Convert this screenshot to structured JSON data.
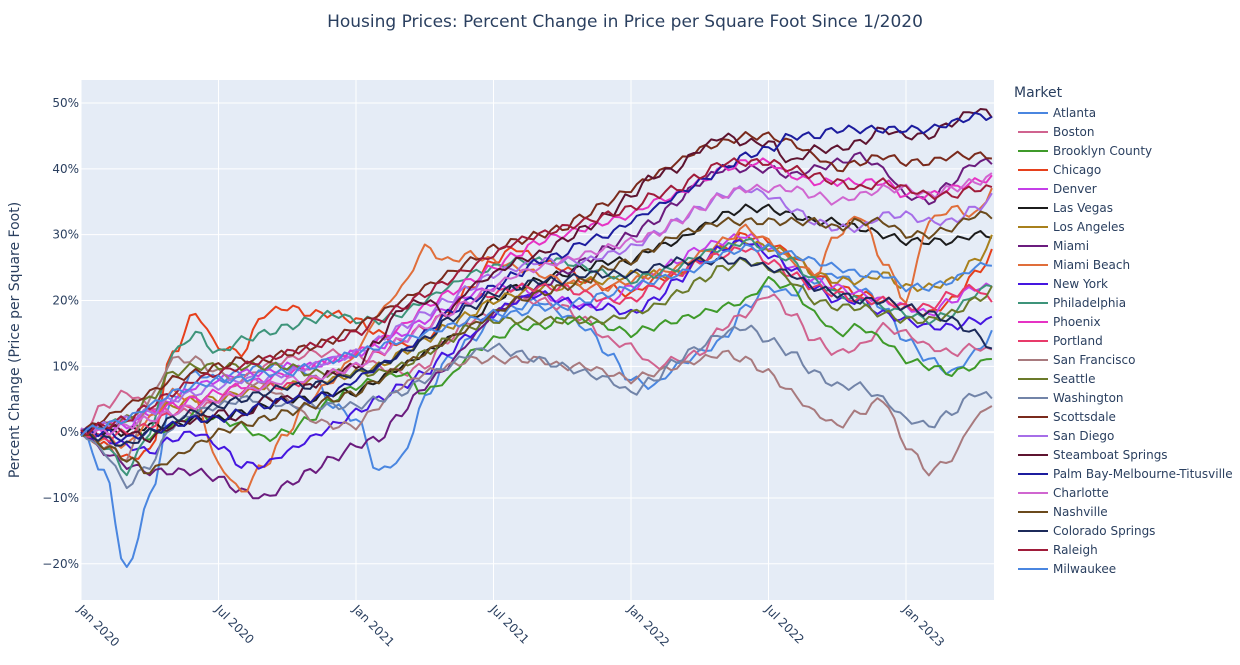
{
  "chart_data": {
    "type": "line",
    "title": "Housing Prices: Percent Change in Price per Square Foot Since 1/2020",
    "xlabel": "",
    "ylabel": "Percent Change (Price per Square Foot)",
    "legend_title": "Market",
    "legend_position": "right",
    "grid": true,
    "ylim": [
      -25.5,
      53.5
    ],
    "xlim": [
      "2020-01",
      "2023-05"
    ],
    "x_ticks": [
      "Jan 2020",
      "Jul 2020",
      "Jan 2021",
      "Jul 2021",
      "Jan 2022",
      "Jul 2022",
      "Jan 2023"
    ],
    "y_ticks": [
      50,
      40,
      30,
      20,
      10,
      0,
      -10,
      -20
    ],
    "y_tick_labels": [
      "50%",
      "40%",
      "30%",
      "20%",
      "10%",
      "0%",
      "−10%",
      "−20%"
    ],
    "x": [
      "2020-01",
      "2020-02",
      "2020-03",
      "2020-04",
      "2020-05",
      "2020-06",
      "2020-07",
      "2020-08",
      "2020-09",
      "2020-10",
      "2020-11",
      "2020-12",
      "2021-01",
      "2021-02",
      "2021-03",
      "2021-04",
      "2021-05",
      "2021-06",
      "2021-07",
      "2021-08",
      "2021-09",
      "2021-10",
      "2021-11",
      "2021-12",
      "2022-01",
      "2022-02",
      "2022-03",
      "2022-04",
      "2022-05",
      "2022-06",
      "2022-07",
      "2022-08",
      "2022-09",
      "2022-10",
      "2022-11",
      "2022-12",
      "2023-01",
      "2023-02",
      "2023-03",
      "2023-04",
      "2023-05"
    ],
    "series": [
      {
        "name": "Atlanta",
        "color": "#4a86e0",
        "values": [
          0,
          -6,
          -21,
          -10,
          5,
          9,
          8,
          9,
          10,
          10,
          9,
          4,
          2,
          -6,
          -4,
          5,
          11,
          14,
          17,
          19,
          20,
          18,
          16,
          12,
          8,
          7,
          10,
          12,
          14,
          19,
          22,
          21,
          23,
          24,
          22,
          19,
          14,
          11,
          9,
          12,
          16
        ]
      },
      {
        "name": "Boston",
        "color": "#d0638f",
        "values": [
          0,
          4,
          6,
          4,
          3,
          3,
          5,
          8,
          10,
          11,
          12,
          12,
          12,
          10,
          9,
          10,
          14,
          17,
          18,
          20,
          20,
          19,
          17,
          14,
          13,
          10,
          11,
          12,
          16,
          18,
          21,
          18,
          14,
          12,
          13,
          16,
          15,
          13,
          12,
          13,
          12
        ]
      },
      {
        "name": "Brooklyn County",
        "color": "#3f9a2a",
        "values": [
          0,
          1,
          2,
          -1,
          1,
          3,
          2,
          1,
          -1,
          0,
          2,
          5,
          7,
          8,
          9,
          6,
          8,
          12,
          14,
          16,
          16,
          17,
          17,
          16,
          15,
          16,
          17,
          18,
          19,
          20,
          23,
          22,
          18,
          15,
          16,
          14,
          11,
          10,
          9,
          10,
          12
        ]
      },
      {
        "name": "Chicago",
        "color": "#e6401c",
        "values": [
          0,
          -2,
          -4,
          -3,
          12,
          18,
          13,
          12,
          18,
          19,
          18,
          18,
          17,
          15,
          13,
          14,
          18,
          22,
          26,
          28,
          26,
          25,
          23,
          22,
          21,
          23,
          24,
          26,
          28,
          30,
          29,
          27,
          24,
          22,
          21,
          20,
          19,
          18,
          20,
          24,
          28
        ]
      },
      {
        "name": "Denver",
        "color": "#c43fe8",
        "values": [
          0,
          0,
          1,
          3,
          5,
          7,
          8,
          9,
          9,
          10,
          10,
          11,
          12,
          13,
          15,
          17,
          19,
          21,
          22,
          22,
          21,
          20,
          19,
          20,
          22,
          24,
          26,
          28,
          29,
          30,
          28,
          25,
          23,
          22,
          21,
          20,
          19,
          18,
          20,
          22,
          22
        ]
      },
      {
        "name": "Las Vegas",
        "color": "#1c1c1c",
        "values": [
          0,
          0,
          0,
          1,
          1,
          2,
          2,
          3,
          4,
          5,
          5,
          6,
          6,
          8,
          10,
          12,
          14,
          17,
          20,
          22,
          23,
          24,
          25,
          26,
          26,
          28,
          29,
          31,
          33,
          34,
          34,
          33,
          32,
          32,
          31,
          30,
          29,
          29,
          29,
          30,
          30
        ]
      },
      {
        "name": "Los Angeles",
        "color": "#a8801c",
        "values": [
          0,
          1,
          2,
          3,
          4,
          5,
          5,
          6,
          7,
          7,
          8,
          8,
          9,
          10,
          12,
          14,
          16,
          18,
          20,
          21,
          22,
          22,
          23,
          23,
          24,
          24,
          24,
          26,
          28,
          29,
          28,
          27,
          24,
          23,
          23,
          24,
          22,
          22,
          23,
          26,
          30
        ]
      },
      {
        "name": "Miami",
        "color": "#6b1c7e",
        "values": [
          0,
          -3,
          -5,
          -6,
          -6,
          -6,
          -7,
          -9,
          -10,
          -8,
          -6,
          -4,
          -2,
          -1,
          3,
          7,
          10,
          14,
          18,
          20,
          22,
          24,
          26,
          28,
          30,
          32,
          35,
          38,
          40,
          40,
          40,
          39,
          40,
          41,
          42,
          40,
          36,
          35,
          38,
          41,
          41
        ]
      },
      {
        "name": "Miami Beach",
        "color": "#e06e3a",
        "values": [
          0,
          -1,
          -2,
          2,
          6,
          5,
          -5,
          -9,
          -5,
          0,
          5,
          8,
          12,
          18,
          22,
          28,
          26,
          27,
          26,
          25,
          24,
          23,
          22,
          22,
          23,
          24,
          25,
          27,
          29,
          31,
          29,
          26,
          24,
          30,
          33,
          26,
          20,
          32,
          34,
          33,
          38
        ]
      },
      {
        "name": "New York",
        "color": "#4516e0",
        "values": [
          0,
          -1,
          -2,
          -3,
          -1,
          0,
          -2,
          -5,
          -5,
          -3,
          -1,
          1,
          3,
          5,
          7,
          9,
          12,
          15,
          18,
          20,
          21,
          20,
          19,
          19,
          18,
          20,
          23,
          26,
          28,
          29,
          27,
          25,
          22,
          20,
          20,
          18,
          17,
          16,
          16,
          17,
          17
        ]
      },
      {
        "name": "Philadelphia",
        "color": "#3d947a",
        "values": [
          0,
          -2,
          -6,
          0,
          12,
          15,
          12,
          14,
          15,
          16,
          17,
          18,
          17,
          17,
          18,
          20,
          22,
          24,
          25,
          26,
          26,
          26,
          25,
          24,
          23,
          24,
          25,
          27,
          28,
          29,
          28,
          26,
          23,
          21,
          20,
          19,
          18,
          17,
          18,
          21,
          23
        ]
      },
      {
        "name": "Phoenix",
        "color": "#e633c4",
        "values": [
          0,
          1,
          2,
          3,
          4,
          5,
          6,
          7,
          8,
          9,
          10,
          11,
          12,
          14,
          16,
          19,
          21,
          23,
          25,
          27,
          29,
          30,
          31,
          32,
          33,
          35,
          36,
          38,
          40,
          41,
          41,
          39,
          38,
          38,
          38,
          38,
          36,
          36,
          37,
          38,
          39
        ]
      },
      {
        "name": "Portland",
        "color": "#e83a6a",
        "values": [
          0,
          -1,
          0,
          1,
          3,
          4,
          5,
          6,
          7,
          7,
          8,
          9,
          10,
          12,
          14,
          16,
          18,
          20,
          21,
          22,
          22,
          22,
          21,
          20,
          20,
          22,
          24,
          26,
          27,
          28,
          26,
          24,
          22,
          21,
          20,
          20,
          19,
          19,
          21,
          22,
          19
        ]
      },
      {
        "name": "San Francisco",
        "color": "#a87a7e",
        "values": [
          0,
          -2,
          -4,
          5,
          11,
          11,
          9,
          8,
          7,
          5,
          2,
          1,
          1,
          4,
          7,
          9,
          10,
          11,
          11,
          11,
          11,
          10,
          10,
          9,
          8,
          9,
          10,
          11,
          12,
          11,
          9,
          6,
          3,
          1,
          3,
          5,
          -2,
          -6,
          -4,
          2,
          5
        ]
      },
      {
        "name": "Seattle",
        "color": "#6b7a2a",
        "values": [
          0,
          1,
          2,
          5,
          9,
          10,
          10,
          10,
          10,
          10,
          9,
          9,
          9,
          9,
          10,
          12,
          14,
          16,
          17,
          17,
          17,
          17,
          17,
          17,
          18,
          19,
          21,
          23,
          25,
          26,
          25,
          23,
          20,
          19,
          19,
          18,
          17,
          17,
          18,
          20,
          22
        ]
      },
      {
        "name": "Washington",
        "color": "#7284a8",
        "values": [
          0,
          -3,
          -8,
          -5,
          1,
          3,
          4,
          5,
          5,
          4,
          4,
          4,
          4,
          5,
          6,
          8,
          10,
          12,
          13,
          12,
          11,
          10,
          9,
          8,
          6,
          8,
          11,
          13,
          15,
          16,
          14,
          12,
          9,
          7,
          7,
          5,
          2,
          1,
          3,
          6,
          5
        ]
      },
      {
        "name": "Scottsdale",
        "color": "#7a2a1c",
        "values": [
          0,
          2,
          4,
          6,
          8,
          9,
          10,
          11,
          11,
          12,
          13,
          14,
          16,
          18,
          20,
          22,
          24,
          26,
          28,
          29,
          30,
          31,
          33,
          35,
          37,
          39,
          41,
          43,
          44,
          45,
          45,
          44,
          42,
          40,
          41,
          42,
          41,
          41,
          42,
          42,
          42
        ]
      },
      {
        "name": "San Diego",
        "color": "#a66ee8",
        "values": [
          0,
          1,
          2,
          3,
          5,
          6,
          7,
          8,
          8,
          9,
          10,
          11,
          12,
          14,
          16,
          18,
          20,
          22,
          24,
          25,
          26,
          26,
          26,
          27,
          28,
          30,
          32,
          34,
          36,
          37,
          36,
          34,
          32,
          31,
          31,
          33,
          33,
          32,
          32,
          34,
          36
        ]
      },
      {
        "name": "Steamboat Springs",
        "color": "#5e1430",
        "values": [
          0,
          1,
          0,
          -1,
          1,
          2,
          3,
          2,
          5,
          5,
          7,
          9,
          10,
          14,
          19,
          20,
          18,
          22,
          24,
          26,
          27,
          29,
          31,
          33,
          36,
          39,
          40,
          43,
          45,
          44,
          44,
          41,
          43,
          43,
          44,
          46,
          45,
          45,
          47,
          49,
          48
        ]
      },
      {
        "name": "Palm Bay-Melbourne-Titusville",
        "color": "#1c1c9e",
        "values": [
          0,
          0,
          -1,
          0,
          1,
          2,
          2,
          3,
          4,
          5,
          5,
          6,
          8,
          10,
          12,
          15,
          18,
          20,
          22,
          24,
          26,
          27,
          29,
          30,
          32,
          34,
          36,
          38,
          40,
          42,
          43,
          45,
          45,
          46,
          46,
          46,
          46,
          46,
          47,
          48,
          48
        ]
      },
      {
        "name": "Charlotte",
        "color": "#d066d0",
        "values": [
          0,
          0,
          1,
          2,
          3,
          4,
          5,
          6,
          7,
          8,
          8,
          9,
          10,
          12,
          14,
          16,
          18,
          20,
          22,
          24,
          25,
          26,
          27,
          28,
          29,
          30,
          32,
          34,
          36,
          37,
          37,
          37,
          36,
          35,
          36,
          37,
          37,
          36,
          37,
          38,
          39
        ]
      },
      {
        "name": "Nashville",
        "color": "#6b4a1c",
        "values": [
          0,
          -2,
          -4,
          -6,
          -4,
          -2,
          0,
          1,
          2,
          3,
          4,
          5,
          6,
          8,
          10,
          12,
          14,
          16,
          18,
          20,
          21,
          22,
          23,
          25,
          26,
          28,
          30,
          31,
          32,
          32,
          32,
          32,
          32,
          31,
          32,
          32,
          30,
          30,
          31,
          33,
          33
        ]
      },
      {
        "name": "Colorado Springs",
        "color": "#1c2a5a",
        "values": [
          0,
          -1,
          -2,
          0,
          2,
          3,
          4,
          5,
          6,
          7,
          7,
          8,
          9,
          10,
          12,
          14,
          17,
          19,
          21,
          22,
          23,
          23,
          24,
          24,
          24,
          25,
          26,
          26,
          26,
          26,
          25,
          24,
          22,
          21,
          20,
          20,
          19,
          18,
          17,
          15,
          12
        ]
      },
      {
        "name": "Raleigh",
        "color": "#a01c3a",
        "values": [
          0,
          1,
          2,
          4,
          6,
          8,
          9,
          10,
          11,
          12,
          13,
          14,
          15,
          17,
          19,
          21,
          23,
          25,
          27,
          29,
          30,
          31,
          32,
          33,
          34,
          36,
          37,
          39,
          41,
          41,
          41,
          40,
          39,
          38,
          37,
          38,
          37,
          36,
          36,
          37,
          37
        ]
      },
      {
        "name": "Milwaukee",
        "color": "#4a86e0",
        "values": [
          0,
          1,
          2,
          4,
          6,
          7,
          8,
          8,
          9,
          9,
          10,
          11,
          12,
          13,
          14,
          15,
          16,
          17,
          18,
          18,
          19,
          19,
          20,
          21,
          22,
          23,
          24,
          25,
          27,
          28,
          28,
          27,
          26,
          25,
          24,
          24,
          22,
          22,
          23,
          25,
          26
        ]
      }
    ]
  }
}
